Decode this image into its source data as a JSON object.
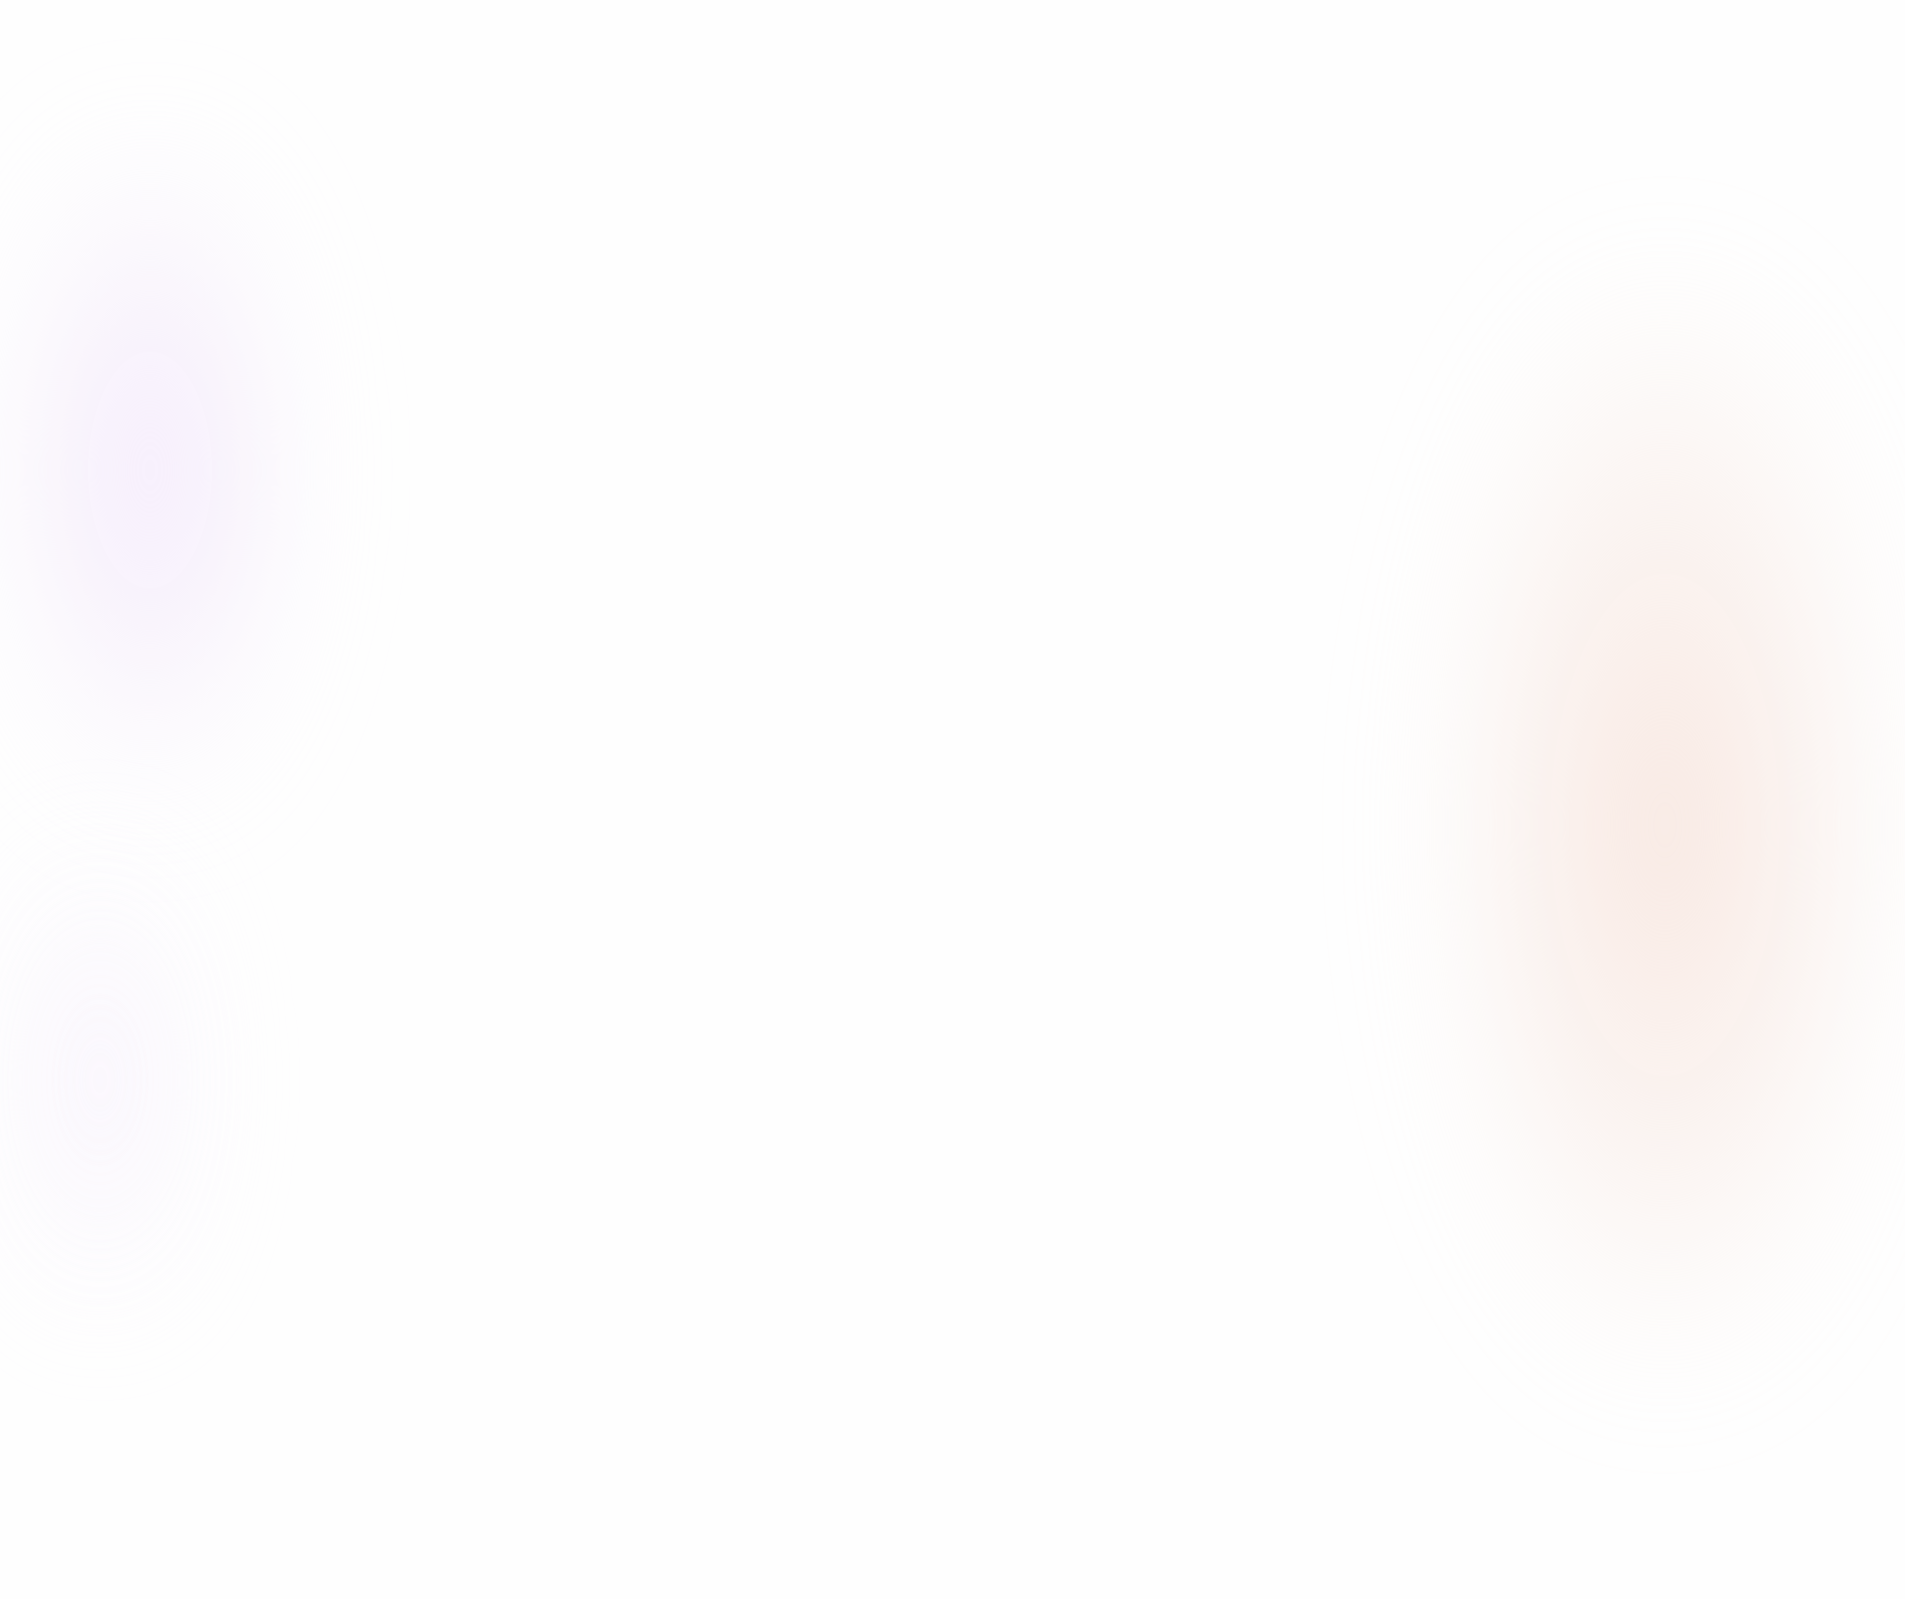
{
  "background": {
    "base_color": "#fefefe",
    "blobs": [
      {
        "name": "purple-top",
        "color": "#f3e8fb"
      },
      {
        "name": "purple-bottom",
        "color": "#f6effc"
      },
      {
        "name": "peach-right",
        "color": "#f7e6df"
      }
    ]
  }
}
